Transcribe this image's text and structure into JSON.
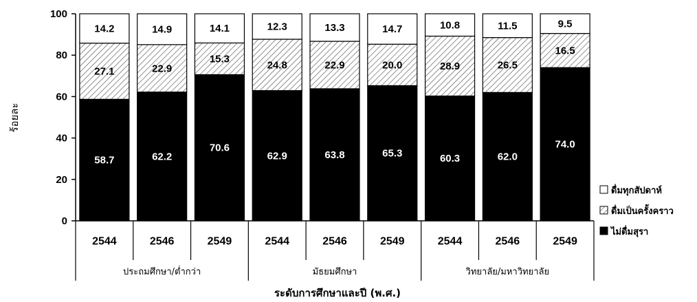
{
  "chart_data": {
    "type": "bar",
    "stacked": true,
    "ylabel": "ร้อยละ",
    "xlabel": "ระดับการศึกษาและปี (พ.ศ.)",
    "ylim": [
      0,
      100
    ],
    "yticks": [
      "0",
      "20",
      "40",
      "60",
      "80",
      "100"
    ],
    "categories": [
      "2544",
      "2546",
      "2549",
      "2544",
      "2546",
      "2549",
      "2544",
      "2546",
      "2549"
    ],
    "groups": [
      {
        "label": "ประถมศึกษา/ต่ำกว่า",
        "count": 3
      },
      {
        "label": "มัธยมศึกษา",
        "count": 3
      },
      {
        "label": "วิทยาลัย/มหาวิทยาลัย",
        "count": 3
      }
    ],
    "series": [
      {
        "name": "ไม่ดื่มสุรา",
        "fill": "#000000",
        "labels": [
          "58.7",
          "62.2",
          "70.6",
          "62.9",
          "63.8",
          "65.3",
          "60.3",
          "62.0",
          "74.0"
        ],
        "values": [
          58.7,
          62.2,
          70.6,
          62.9,
          63.8,
          65.3,
          60.3,
          62.0,
          74.0
        ]
      },
      {
        "name": "ดื่มเป็นครั้งคราว",
        "fill": "hatch",
        "labels": [
          "27.1",
          "22.9",
          "15.3",
          "24.8",
          "22.9",
          "20.0",
          "28.9",
          "26.5",
          "16.5"
        ],
        "values": [
          27.1,
          22.9,
          15.3,
          24.8,
          22.9,
          20.0,
          28.9,
          26.5,
          16.5
        ]
      },
      {
        "name": "ดื่มทุกสัปดาห์",
        "fill": "#ffffff",
        "labels": [
          "14.2",
          "14.9",
          "14.1",
          "12.3",
          "13.3",
          "14.7",
          "10.8",
          "11.5",
          "9.5"
        ],
        "values": [
          14.2,
          14.9,
          14.1,
          12.3,
          13.3,
          14.7,
          10.8,
          11.5,
          9.5
        ]
      }
    ],
    "legend_order": [
      2,
      1,
      0
    ],
    "legend_position": "right",
    "grid": false
  }
}
